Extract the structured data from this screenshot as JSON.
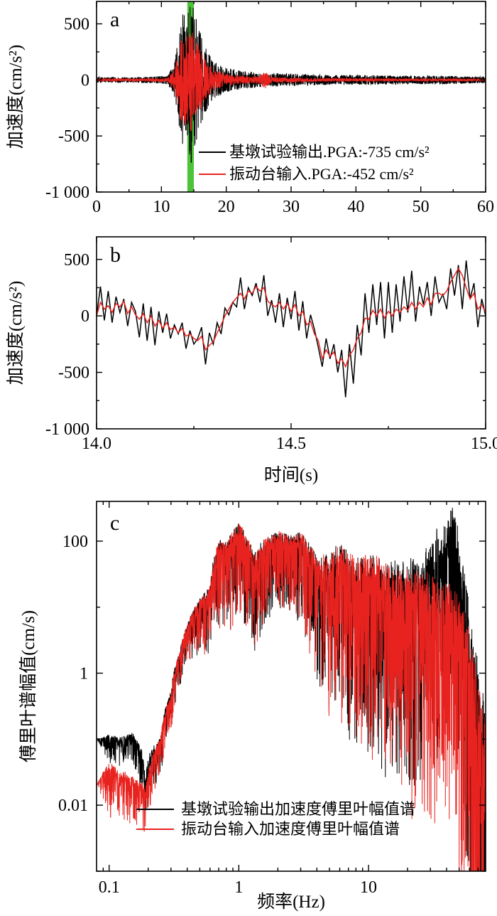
{
  "colors": {
    "output": "#000000",
    "input": "#e8231f",
    "highlight": "#4ec33a"
  },
  "chart_data": [
    {
      "panel": "a",
      "type": "line",
      "ylabel": "加速度(cm/s²)",
      "xlabel": "",
      "xlim": [
        0,
        60
      ],
      "ylim": [
        -1000,
        700
      ],
      "xticks": [
        0,
        10,
        20,
        30,
        40,
        50,
        60
      ],
      "xtick_labels": [
        "0",
        "10",
        "20",
        "30",
        "40",
        "50",
        "60"
      ],
      "yticks": [
        -1000,
        -500,
        0,
        500
      ],
      "ytick_labels": [
        "-1 000",
        "-500",
        "0",
        "500"
      ],
      "highlight_band": [
        14,
        15
      ],
      "legend": [
        {
          "series": "output",
          "label": "基墩试验输出.PGA:-735 cm/s²"
        },
        {
          "series": "input",
          "label": "振动台输入.PGA:-452 cm/s²"
        }
      ],
      "series": [
        {
          "name": "基墩试验输出",
          "key": "output",
          "pga": -735,
          "envelope": {
            "t": [
              0,
              5,
              9,
              11,
              12,
              12.8,
              13.5,
              14,
              14.6,
              15.5,
              16.5,
              18,
              20,
              23,
              25,
              26,
              27,
              30,
              35,
              40,
              45,
              50,
              55,
              60
            ],
            "amp": [
              25,
              25,
              30,
              40,
              150,
              500,
              640,
              560,
              735,
              520,
              330,
              170,
              110,
              75,
              70,
              55,
              60,
              55,
              45,
              45,
              40,
              38,
              36,
              30
            ]
          }
        },
        {
          "name": "振动台输入",
          "key": "input",
          "pga": -452,
          "envelope": {
            "t": [
              0,
              5,
              9,
              11,
              12,
              12.8,
              13.5,
              14,
              14.6,
              15.5,
              16.5,
              18,
              20,
              23,
              25,
              26,
              27,
              30,
              35,
              40,
              45,
              50,
              55,
              60
            ],
            "amp": [
              12,
              12,
              14,
              20,
              90,
              330,
              440,
              400,
              452,
              340,
              200,
              100,
              55,
              35,
              30,
              80,
              25,
              20,
              15,
              15,
              13,
              12,
              12,
              10
            ]
          }
        }
      ]
    },
    {
      "panel": "b",
      "type": "line",
      "ylabel": "加速度(cm/s²)",
      "xlabel": "时间(s)",
      "xlim": [
        14.0,
        15.0
      ],
      "ylim": [
        -1000,
        700
      ],
      "xticks": [
        14.0,
        14.5,
        15.0
      ],
      "xtick_labels": [
        "14.0",
        "14.5",
        "15.0"
      ],
      "yticks": [
        -1000,
        -500,
        0,
        500
      ],
      "ytick_labels": [
        "-1 000",
        "-500",
        "0",
        "500"
      ],
      "series": [
        {
          "name": "基墩试验输出",
          "key": "output",
          "t": [
            14.0,
            14.01,
            14.02,
            14.03,
            14.04,
            14.05,
            14.06,
            14.07,
            14.08,
            14.09,
            14.1,
            14.11,
            14.12,
            14.13,
            14.14,
            14.15,
            14.16,
            14.17,
            14.18,
            14.19,
            14.2,
            14.21,
            14.22,
            14.23,
            14.24,
            14.25,
            14.26,
            14.27,
            14.28,
            14.29,
            14.3,
            14.31,
            14.32,
            14.33,
            14.34,
            14.35,
            14.36,
            14.37,
            14.38,
            14.39,
            14.4,
            14.41,
            14.42,
            14.43,
            14.44,
            14.45,
            14.46,
            14.47,
            14.48,
            14.49,
            14.5,
            14.51,
            14.52,
            14.53,
            14.54,
            14.55,
            14.56,
            14.57,
            14.58,
            14.59,
            14.6,
            14.61,
            14.62,
            14.63,
            14.64,
            14.65,
            14.66,
            14.67,
            14.68,
            14.69,
            14.7,
            14.71,
            14.72,
            14.73,
            14.74,
            14.75,
            14.76,
            14.77,
            14.78,
            14.79,
            14.8,
            14.81,
            14.82,
            14.83,
            14.84,
            14.85,
            14.86,
            14.87,
            14.88,
            14.89,
            14.9,
            14.91,
            14.92,
            14.93,
            14.94,
            14.95,
            14.96,
            14.97,
            14.98,
            14.99,
            15.0
          ],
          "values": [
            0,
            260,
            -40,
            220,
            -60,
            170,
            30,
            150,
            -90,
            120,
            40,
            -190,
            110,
            -220,
            80,
            -260,
            40,
            -150,
            20,
            -200,
            -80,
            -160,
            -60,
            -290,
            -130,
            -250,
            -200,
            -100,
            -430,
            -150,
            -250,
            -60,
            -160,
            70,
            10,
            120,
            80,
            340,
            60,
            250,
            180,
            290,
            120,
            360,
            0,
            140,
            -60,
            200,
            -100,
            160,
            -30,
            220,
            -130,
            130,
            -200,
            10,
            -120,
            -280,
            -450,
            -200,
            -380,
            -250,
            -500,
            -300,
            -720,
            -250,
            -600,
            -80,
            -350,
            200,
            -150,
            280,
            -80,
            300,
            -200,
            300,
            -150,
            280,
            -50,
            350,
            30,
            400,
            -50,
            260,
            100,
            300,
            0,
            350,
            120,
            190,
            60,
            420,
            180,
            450,
            60,
            490,
            150,
            290,
            -100,
            150,
            0
          ]
        },
        {
          "name": "振动台输入",
          "key": "input",
          "t": [
            14.0,
            14.01,
            14.02,
            14.03,
            14.04,
            14.05,
            14.06,
            14.07,
            14.08,
            14.09,
            14.1,
            14.11,
            14.12,
            14.13,
            14.14,
            14.15,
            14.16,
            14.17,
            14.18,
            14.19,
            14.2,
            14.21,
            14.22,
            14.23,
            14.24,
            14.25,
            14.26,
            14.27,
            14.28,
            14.29,
            14.3,
            14.31,
            14.32,
            14.33,
            14.34,
            14.35,
            14.36,
            14.37,
            14.38,
            14.39,
            14.4,
            14.41,
            14.42,
            14.43,
            14.44,
            14.45,
            14.46,
            14.47,
            14.48,
            14.49,
            14.5,
            14.51,
            14.52,
            14.53,
            14.54,
            14.55,
            14.56,
            14.57,
            14.58,
            14.59,
            14.6,
            14.61,
            14.62,
            14.63,
            14.64,
            14.65,
            14.66,
            14.67,
            14.68,
            14.69,
            14.7,
            14.71,
            14.72,
            14.73,
            14.74,
            14.75,
            14.76,
            14.77,
            14.78,
            14.79,
            14.8,
            14.81,
            14.82,
            14.83,
            14.84,
            14.85,
            14.86,
            14.87,
            14.88,
            14.89,
            14.9,
            14.91,
            14.92,
            14.93,
            14.94,
            14.95,
            14.96,
            14.97,
            14.98,
            14.99,
            15.0
          ],
          "values": [
            0,
            120,
            60,
            90,
            30,
            110,
            80,
            130,
            20,
            80,
            10,
            -30,
            20,
            -60,
            0,
            -90,
            -40,
            -110,
            -60,
            -120,
            -100,
            -150,
            -110,
            -180,
            -160,
            -200,
            -220,
            -180,
            -300,
            -260,
            -230,
            -150,
            -80,
            0,
            60,
            120,
            160,
            200,
            150,
            220,
            200,
            260,
            220,
            250,
            130,
            100,
            80,
            120,
            60,
            110,
            40,
            100,
            0,
            40,
            -80,
            -50,
            -160,
            -220,
            -380,
            -300,
            -360,
            -320,
            -420,
            -380,
            -450,
            -350,
            -300,
            -200,
            -150,
            -20,
            -30,
            50,
            0,
            60,
            -20,
            40,
            0,
            60,
            30,
            80,
            50,
            120,
            60,
            120,
            80,
            160,
            100,
            200,
            200,
            180,
            220,
            300,
            360,
            420,
            360,
            250,
            150,
            200,
            60,
            100,
            30
          ]
        }
      ]
    },
    {
      "panel": "c",
      "type": "line",
      "scale": "log-log",
      "ylabel": "傅里叶谱幅值(cm/s)",
      "xlabel": "频率(Hz)",
      "xlim": [
        0.08,
        80
      ],
      "ylim": [
        0.001,
        400
      ],
      "xticks": [
        0.1,
        1,
        10
      ],
      "xtick_labels": [
        "0.1",
        "1",
        "10"
      ],
      "yticks": [
        0.01,
        1,
        100
      ],
      "ytick_labels": [
        "0.01",
        "1",
        "100"
      ],
      "legend": [
        {
          "series": "output",
          "label": "基墩试验输出加速度傅里叶幅值谱"
        },
        {
          "series": "input",
          "label": "振动台输入加速度傅里叶幅值谱"
        }
      ],
      "series": [
        {
          "name": "基墩试验输出加速度傅里叶幅值谱",
          "key": "output",
          "f": [
            0.08,
            0.1,
            0.12,
            0.15,
            0.18,
            0.19,
            0.2,
            0.22,
            0.25,
            0.3,
            0.35,
            0.4,
            0.5,
            0.6,
            0.7,
            0.8,
            1.0,
            1.3,
            1.5,
            2.0,
            2.5,
            3.0,
            4.0,
            5.0,
            6.0,
            8.0,
            10,
            15,
            20,
            25,
            30,
            35,
            40,
            44,
            47,
            50,
            55,
            60,
            70,
            80
          ],
          "amp": [
            0.1,
            0.11,
            0.1,
            0.12,
            0.06,
            0.02,
            0.05,
            0.07,
            0.1,
            0.5,
            2,
            5,
            12,
            18,
            90,
            80,
            150,
            50,
            80,
            120,
            100,
            110,
            40,
            50,
            60,
            35,
            40,
            30,
            30,
            40,
            60,
            100,
            120,
            250,
            150,
            60,
            20,
            3,
            0.5,
            0.1
          ],
          "noise": [
            0,
            0.18,
            0.18,
            0.18,
            0.3,
            0.35,
            0.3,
            0.3,
            0.25,
            0.25,
            0.25,
            0.25,
            0.35,
            0.45,
            0.55,
            0.6,
            0.6,
            0.6,
            0.6,
            0.5,
            0.5,
            0.6,
            0.8,
            1.0,
            1.1,
            1.2,
            1.3,
            1.4,
            1.5,
            1.6,
            1.6,
            1.5,
            1.4,
            1.4,
            1.6,
            1.8,
            1.9,
            2.0,
            2.2,
            2.4
          ]
        },
        {
          "name": "振动台输入加速度傅里叶幅值谱",
          "key": "input",
          "f": [
            0.08,
            0.1,
            0.12,
            0.15,
            0.18,
            0.19,
            0.2,
            0.22,
            0.25,
            0.3,
            0.35,
            0.4,
            0.5,
            0.6,
            0.7,
            0.8,
            1.0,
            1.3,
            1.5,
            2.0,
            2.5,
            3.0,
            4.0,
            5.0,
            6.0,
            8.0,
            10,
            15,
            20,
            25,
            30,
            35,
            40,
            44,
            47,
            50,
            55,
            60,
            70,
            80
          ],
          "amp": [
            0.02,
            0.04,
            0.03,
            0.025,
            0.02,
            0.018,
            0.03,
            0.06,
            0.1,
            0.45,
            2,
            5,
            12,
            18,
            90,
            80,
            150,
            50,
            80,
            120,
            100,
            110,
            40,
            50,
            60,
            35,
            40,
            25,
            20,
            20,
            18,
            15,
            12,
            12,
            10,
            8,
            5,
            2,
            0.3,
            0.08
          ],
          "noise": [
            0,
            0.35,
            0.35,
            0.35,
            0.3,
            0.3,
            0.3,
            0.3,
            0.25,
            0.25,
            0.25,
            0.25,
            0.35,
            0.45,
            0.55,
            0.6,
            0.6,
            0.6,
            0.6,
            0.5,
            0.5,
            0.6,
            0.8,
            1.0,
            1.1,
            1.2,
            1.3,
            1.4,
            1.5,
            1.6,
            1.6,
            1.6,
            1.6,
            1.6,
            1.7,
            1.8,
            1.9,
            2.0,
            2.2,
            2.4
          ]
        }
      ]
    }
  ]
}
